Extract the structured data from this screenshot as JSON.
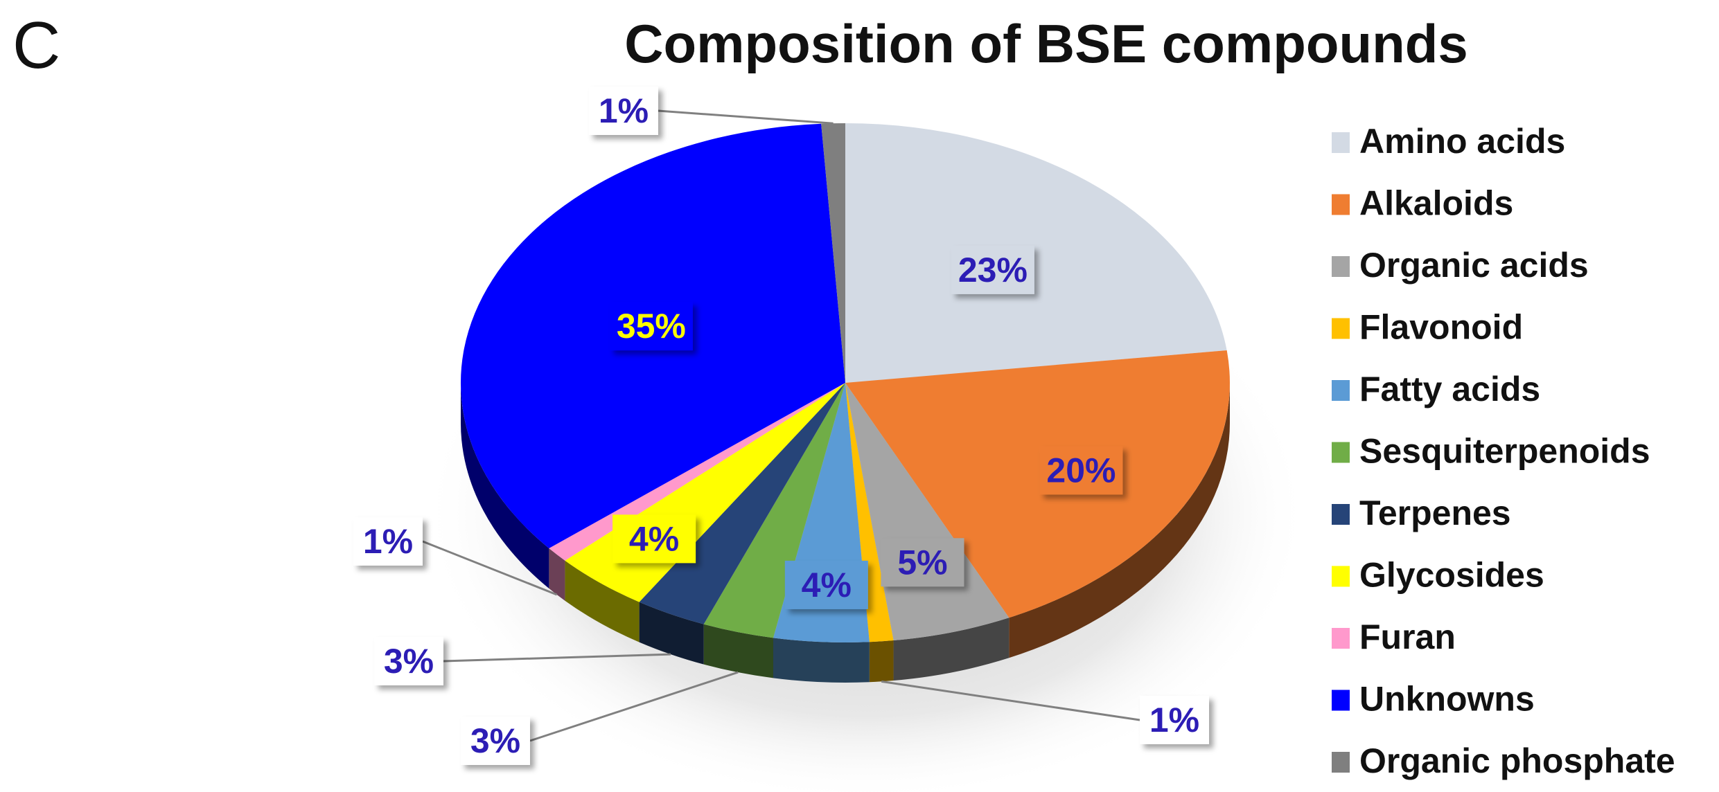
{
  "panel_letter": "C",
  "chart_data": {
    "type": "pie",
    "title": "Composition of BSE compounds",
    "legend_position": "right",
    "categories": [
      "Amino acids",
      "Alkaloids",
      "Organic acids",
      "Flavonoid",
      "Fatty acids",
      "Sesquiterpenoids",
      "Terpenes",
      "Glycosides",
      "Furan",
      "Unknowns",
      "Organic phosphate"
    ],
    "values": [
      23,
      20,
      5,
      1,
      4,
      3,
      3,
      4,
      1,
      35,
      1
    ],
    "data_labels": [
      "23%",
      "20%",
      "5%",
      "1%",
      "4%",
      "3%",
      "3%",
      "4%",
      "1%",
      "35%",
      "1%"
    ],
    "colors": [
      "#D3DAE4",
      "#EF7D31",
      "#A5A5A5",
      "#FFC000",
      "#5B9BD5",
      "#70AD47",
      "#264478",
      "#FFFF00",
      "#FF99CC",
      "#0000FF",
      "#7F7F7F"
    ],
    "label_color": "#2C1DB5",
    "highlight_label_color": "#FFFF00"
  }
}
